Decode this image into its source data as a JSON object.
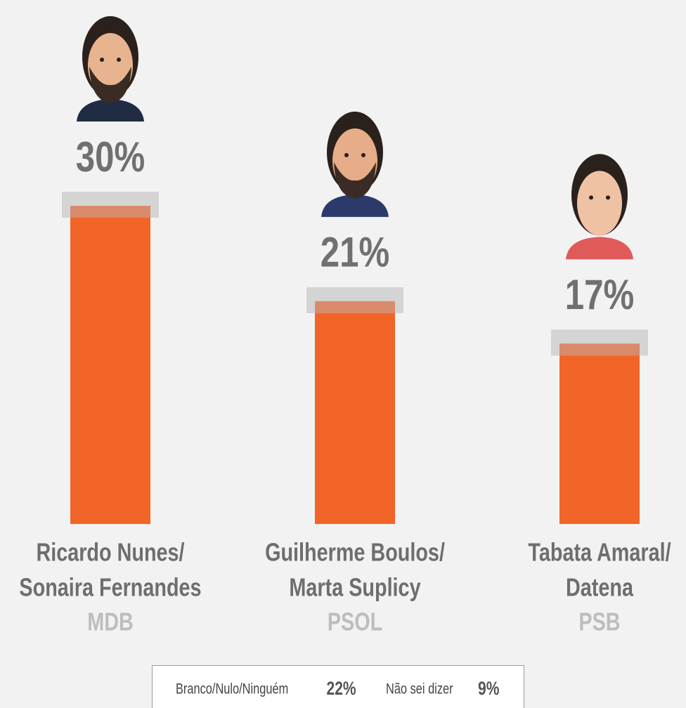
{
  "chart_data": {
    "type": "bar",
    "categories": [
      [
        "Ricardo Nunes/",
        "Sonaira Fernandes"
      ],
      [
        "Guilherme Boulos/",
        "Marta Suplicy"
      ],
      [
        "Tabata Amaral/",
        "Datena"
      ]
    ],
    "parties": [
      "MDB",
      "PSOL",
      "PSB"
    ],
    "values": [
      30,
      21,
      17
    ],
    "value_labels": [
      "30%",
      "21%",
      "17%"
    ],
    "color": "#f26529"
  },
  "footer": {
    "items": [
      {
        "label": "Branco/Nulo/Ninguém",
        "value": "22%"
      },
      {
        "label": "Não sei dizer",
        "value": "9%"
      }
    ]
  }
}
